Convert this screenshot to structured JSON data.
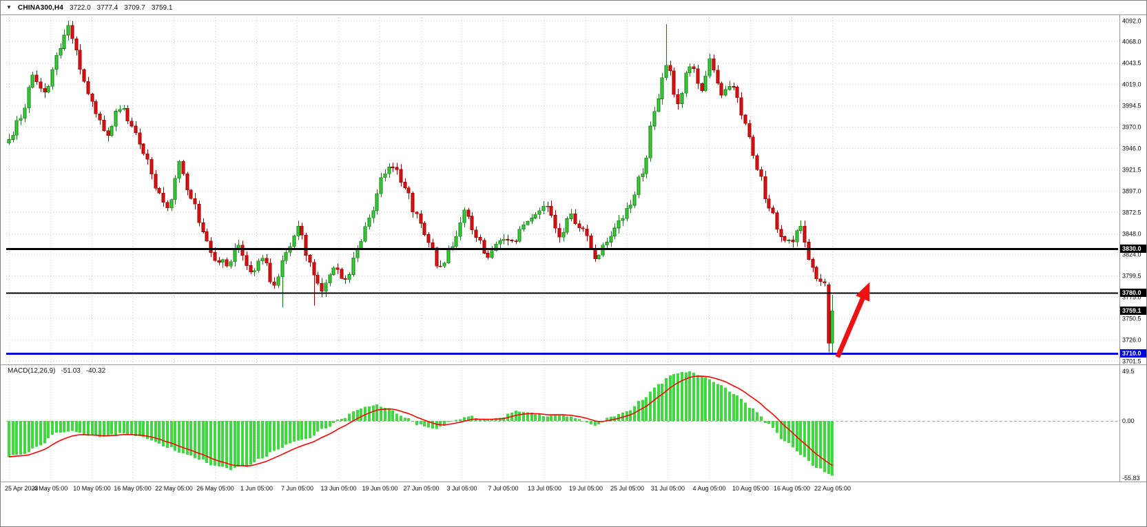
{
  "title_bar": {
    "symbol": "CHINA300,H4",
    "open": "3722.0",
    "high": "3777.4",
    "low": "3709.7",
    "close": "3759.1"
  },
  "price_axis": {
    "ticks": [
      "4092.0",
      "4068.0",
      "4043.5",
      "4019.0",
      "3994.5",
      "3970.0",
      "3946.0",
      "3921.5",
      "3897.0",
      "3872.5",
      "3848.0",
      "3824.0",
      "3799.5",
      "3775.0",
      "3750.5",
      "3726.0",
      "3701.5"
    ]
  },
  "time_axis": {
    "labels": [
      "25 Apr 2023",
      "4 May 05:00",
      "10 May 05:00",
      "16 May 05:00",
      "22 May 05:00",
      "26 May 05:00",
      "1 Jun 05:00",
      "7 Jun 05:00",
      "13 Jun 05:00",
      "19 Jun 05:00",
      "27 Jun 05:00",
      "3 Jul 05:00",
      "7 Jul 05:00",
      "13 Jul 05:00",
      "19 Jul 05:00",
      "25 Jul 05:00",
      "31 Jul 05:00",
      "4 Aug 05:00",
      "10 Aug 05:00",
      "16 Aug 05:00",
      "22 Aug 05:00"
    ]
  },
  "levels": [
    {
      "label": "3830.0",
      "price": 3830.0,
      "color": "#000000",
      "width": 3
    },
    {
      "label": "3780.0",
      "price": 3780.0,
      "color": "#000000",
      "width": 2
    },
    {
      "label": "3710.0",
      "price": 3710.0,
      "color": "#0202dd",
      "width": 3
    }
  ],
  "current_price_tag": {
    "label": "3759.1",
    "price": 3759.1,
    "color": "#000000"
  },
  "macd_panel": {
    "label": "MACD(12,26,9)",
    "macd_value": "-51.03",
    "signal_value": "-40.32",
    "axis_ticks": [
      "49.5",
      "0.00",
      "-55.83"
    ],
    "axis_values": [
      49.5,
      0,
      -55.83
    ]
  },
  "annotations": {
    "arrow": {
      "color": "#ee1111",
      "from_bar": 209.3,
      "from_price": 3706,
      "to_bar": 217.4,
      "to_price": 3792,
      "desc": "red up-arrow at latest bars"
    }
  },
  "colors": {
    "background": "#ffffff",
    "grid": "#cccccc",
    "separator": "#9a9a9a",
    "candle_up": "#35cc35",
    "candle_up_stroke": "#177a17",
    "candle_down": "#e01010",
    "candle_down_stroke": "#8f0000",
    "macd_histogram": "#3fd83f",
    "macd_signal": "#ff0000",
    "axis_text": "#0a0a0a"
  },
  "chart_data": {
    "type": "candlestick",
    "symbol": "CHINA300",
    "timeframe": "H4",
    "title": "CHINA300,H4",
    "ylim": [
      3701.5,
      4092.0
    ],
    "n_bars": 209,
    "current_bar": {
      "open": 3722.0,
      "high": 3777.4,
      "low": 3709.7,
      "close": 3759.1
    },
    "prior_bar": {
      "open": 3789.0,
      "high": 3791.5,
      "low": 3711.5,
      "close": 3722.0
    },
    "price_keyframes": [
      [
        0,
        3960
      ],
      [
        3,
        3978
      ],
      [
        6,
        4030
      ],
      [
        9,
        4008
      ],
      [
        12,
        4050
      ],
      [
        15,
        4088
      ],
      [
        17,
        4058
      ],
      [
        19,
        4018
      ],
      [
        22,
        3988
      ],
      [
        25,
        3962
      ],
      [
        28,
        3994
      ],
      [
        31,
        3970
      ],
      [
        34,
        3938
      ],
      [
        37,
        3904
      ],
      [
        40,
        3878
      ],
      [
        43,
        3928
      ],
      [
        46,
        3888
      ],
      [
        49,
        3848
      ],
      [
        52,
        3820
      ],
      [
        55,
        3812
      ],
      [
        58,
        3836
      ],
      [
        61,
        3800
      ],
      [
        64,
        3818
      ],
      [
        67,
        3788
      ],
      [
        70,
        3822
      ],
      [
        73,
        3852
      ],
      [
        76,
        3812
      ],
      [
        79,
        3783
      ],
      [
        82,
        3806
      ],
      [
        85,
        3792
      ],
      [
        88,
        3828
      ],
      [
        91,
        3868
      ],
      [
        94,
        3908
      ],
      [
        97,
        3928
      ],
      [
        100,
        3898
      ],
      [
        103,
        3866
      ],
      [
        106,
        3836
      ],
      [
        109,
        3806
      ],
      [
        112,
        3836
      ],
      [
        115,
        3872
      ],
      [
        118,
        3842
      ],
      [
        121,
        3818
      ],
      [
        124,
        3842
      ],
      [
        127,
        3836
      ],
      [
        130,
        3858
      ],
      [
        133,
        3872
      ],
      [
        136,
        3882
      ],
      [
        139,
        3848
      ],
      [
        142,
        3866
      ],
      [
        145,
        3854
      ],
      [
        148,
        3820
      ],
      [
        151,
        3836
      ],
      [
        154,
        3860
      ],
      [
        157,
        3882
      ],
      [
        160,
        3920
      ],
      [
        163,
        3985
      ],
      [
        166,
        4042
      ],
      [
        169,
        3998
      ],
      [
        172,
        4040
      ],
      [
        175,
        4012
      ],
      [
        177,
        4048
      ],
      [
        180,
        4006
      ],
      [
        183,
        4016
      ],
      [
        186,
        3970
      ],
      [
        189,
        3924
      ],
      [
        192,
        3876
      ],
      [
        195,
        3846
      ],
      [
        198,
        3836
      ],
      [
        200,
        3858
      ],
      [
        202,
        3822
      ],
      [
        204,
        3792
      ],
      [
        206,
        3788
      ],
      [
        207,
        3722
      ],
      [
        208,
        3759.1
      ]
    ],
    "wick_high_overrides": [
      [
        15,
        4092
      ],
      [
        166,
        4088
      ]
    ],
    "wick_low_overrides": [
      [
        69,
        3763
      ],
      [
        77,
        3765
      ]
    ],
    "support_resistance": [
      3830.0,
      3780.0,
      3710.0
    ],
    "macd": {
      "type": "histogram+line",
      "ylim": [
        -55.83,
        49.5
      ],
      "last_macd": -51.03,
      "last_signal": -40.32,
      "macd_keyframes": [
        [
          0,
          -33
        ],
        [
          4,
          -31
        ],
        [
          8,
          -22
        ],
        [
          12,
          -12
        ],
        [
          16,
          -9
        ],
        [
          20,
          -13
        ],
        [
          24,
          -15
        ],
        [
          28,
          -12
        ],
        [
          32,
          -14
        ],
        [
          36,
          -18
        ],
        [
          40,
          -24
        ],
        [
          44,
          -30
        ],
        [
          48,
          -36
        ],
        [
          52,
          -42
        ],
        [
          56,
          -45
        ],
        [
          60,
          -42
        ],
        [
          64,
          -34
        ],
        [
          68,
          -26
        ],
        [
          72,
          -20
        ],
        [
          76,
          -15
        ],
        [
          80,
          -7
        ],
        [
          84,
          2
        ],
        [
          88,
          11
        ],
        [
          92,
          15
        ],
        [
          96,
          11
        ],
        [
          100,
          3
        ],
        [
          104,
          -4
        ],
        [
          108,
          -7
        ],
        [
          112,
          0
        ],
        [
          116,
          5
        ],
        [
          120,
          1
        ],
        [
          124,
          3
        ],
        [
          128,
          9
        ],
        [
          132,
          7
        ],
        [
          136,
          4
        ],
        [
          140,
          6
        ],
        [
          144,
          1
        ],
        [
          148,
          -4
        ],
        [
          152,
          3
        ],
        [
          156,
          9
        ],
        [
          160,
          20
        ],
        [
          164,
          34
        ],
        [
          168,
          44
        ],
        [
          172,
          46
        ],
        [
          176,
          41
        ],
        [
          180,
          33
        ],
        [
          184,
          23
        ],
        [
          188,
          11
        ],
        [
          192,
          -4
        ],
        [
          196,
          -19
        ],
        [
          200,
          -31
        ],
        [
          204,
          -43
        ],
        [
          208,
          -51.03
        ]
      ]
    }
  }
}
